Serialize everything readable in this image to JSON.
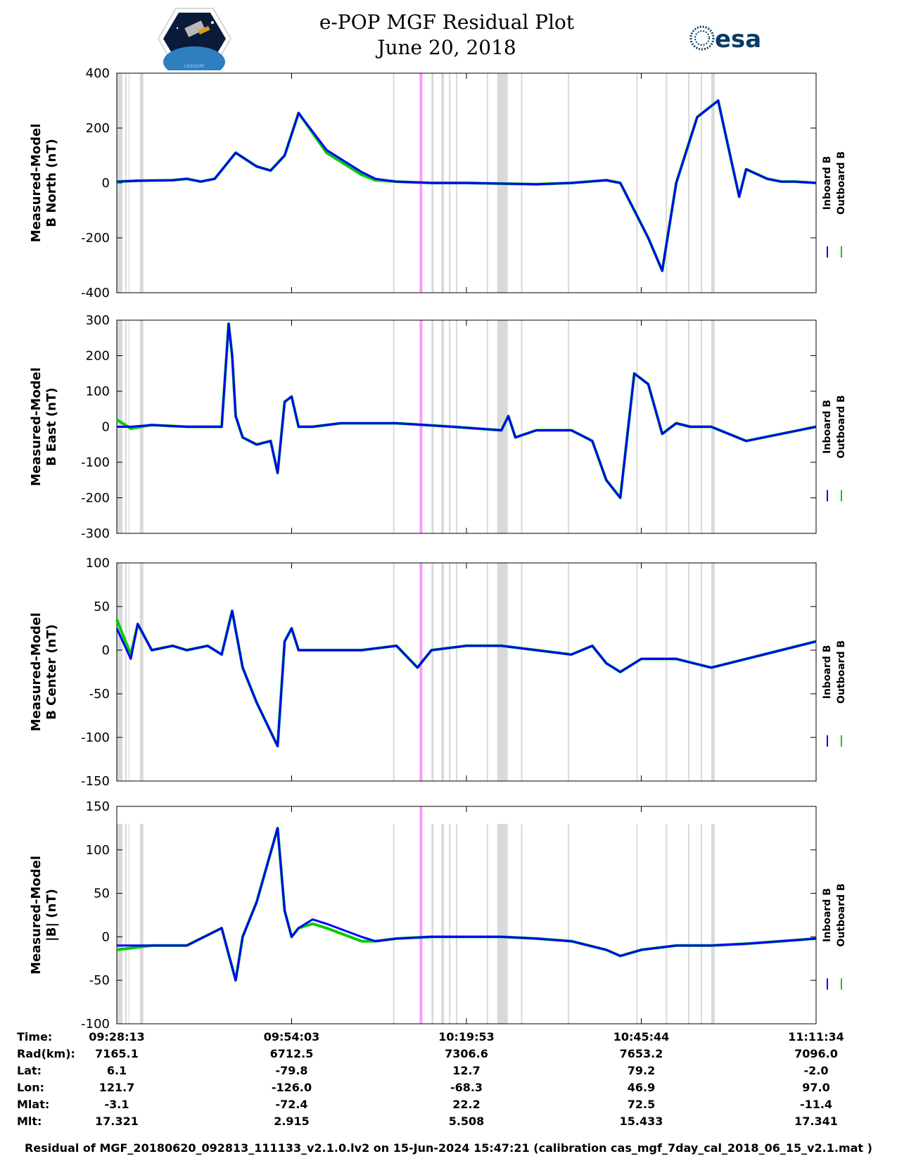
{
  "header": {
    "title": "e-POP MGF Residual Plot",
    "date": "June 20, 2018",
    "logo_left_caption": "CASSIOPE",
    "logo_right_text": "esa"
  },
  "colors": {
    "inboard": "#0000ff",
    "outboard": "#00cc00",
    "gap_band": "#d9d9d9",
    "marker": "#ff99ff"
  },
  "chart_data": [
    {
      "type": "line",
      "ylabel_line1": "Measured-Model",
      "ylabel_line2": "B North (nT)",
      "ylim": [
        -400,
        400
      ],
      "yticks": [
        400,
        200,
        0,
        -200,
        -400
      ],
      "x": [
        0,
        3,
        8,
        10,
        12,
        14,
        17,
        20,
        22,
        24,
        26,
        30,
        35,
        37,
        40,
        45,
        50,
        60,
        65,
        70,
        72,
        74,
        76,
        78,
        80,
        83,
        86,
        89,
        90,
        93,
        95,
        97,
        100
      ],
      "series": [
        {
          "name": "Inboard B",
          "values": [
            5,
            8,
            10,
            15,
            5,
            15,
            110,
            60,
            45,
            100,
            255,
            120,
            40,
            15,
            5,
            0,
            0,
            -5,
            0,
            10,
            0,
            -100,
            -200,
            -320,
            0,
            240,
            300,
            -50,
            50,
            15,
            5,
            5,
            0
          ]
        },
        {
          "name": "Outboard B",
          "values": [
            5,
            8,
            10,
            15,
            5,
            15,
            110,
            60,
            45,
            100,
            255,
            110,
            30,
            10,
            5,
            0,
            0,
            -5,
            0,
            10,
            0,
            -100,
            -200,
            -320,
            0,
            240,
            300,
            -50,
            50,
            15,
            5,
            5,
            0
          ]
        }
      ]
    },
    {
      "type": "line",
      "ylabel_line1": "Measured-Model",
      "ylabel_line2": "B East (nT)",
      "ylim": [
        -300,
        300
      ],
      "yticks": [
        300,
        200,
        100,
        0,
        -100,
        -200,
        -300
      ],
      "x": [
        0,
        2,
        5,
        10,
        15,
        16,
        16.5,
        17,
        18,
        20,
        22,
        23,
        24,
        25,
        26,
        28,
        32,
        40,
        48,
        55,
        56,
        57,
        60,
        65,
        68,
        70,
        72,
        74,
        76,
        78,
        80,
        82,
        85,
        90,
        100
      ],
      "series": [
        {
          "name": "Inboard B",
          "values": [
            0,
            0,
            5,
            0,
            0,
            290,
            200,
            30,
            -30,
            -50,
            -40,
            -130,
            70,
            85,
            0,
            0,
            10,
            10,
            0,
            -10,
            30,
            -30,
            -10,
            -10,
            -40,
            -150,
            -200,
            150,
            120,
            -20,
            10,
            0,
            0,
            -40,
            0
          ]
        },
        {
          "name": "Outboard B",
          "values": [
            20,
            -5,
            5,
            0,
            0,
            290,
            200,
            30,
            -30,
            -50,
            -40,
            -130,
            70,
            85,
            0,
            0,
            10,
            10,
            0,
            -10,
            30,
            -30,
            -10,
            -10,
            -40,
            -150,
            -200,
            150,
            120,
            -20,
            10,
            0,
            0,
            -40,
            0
          ]
        }
      ]
    },
    {
      "type": "line",
      "ylabel_line1": "Measured-Model",
      "ylabel_line2": "B Center (nT)",
      "ylim": [
        -150,
        100
      ],
      "yticks": [
        100,
        50,
        0,
        -50,
        -100,
        -150
      ],
      "x": [
        0,
        2,
        3,
        5,
        8,
        10,
        13,
        15,
        16.5,
        18,
        20,
        23,
        24,
        25,
        26,
        28,
        30,
        35,
        40,
        43,
        45,
        50,
        55,
        60,
        65,
        68,
        70,
        72,
        75,
        80,
        85,
        90,
        95,
        100
      ],
      "series": [
        {
          "name": "Inboard B",
          "values": [
            25,
            -10,
            30,
            0,
            5,
            0,
            5,
            -5,
            45,
            -20,
            -60,
            -110,
            10,
            25,
            0,
            0,
            0,
            0,
            5,
            -20,
            0,
            5,
            5,
            0,
            -5,
            5,
            -15,
            -25,
            -10,
            -10,
            -20,
            -10,
            0,
            10
          ]
        },
        {
          "name": "Outboard B",
          "values": [
            35,
            -5,
            30,
            0,
            5,
            0,
            5,
            -5,
            45,
            -20,
            -60,
            -110,
            10,
            25,
            0,
            0,
            0,
            0,
            5,
            -20,
            0,
            5,
            5,
            0,
            -5,
            5,
            -15,
            -25,
            -10,
            -10,
            -20,
            -10,
            0,
            10
          ]
        }
      ]
    },
    {
      "type": "line",
      "ylabel_line1": "Measured-Model",
      "ylabel_line2": "|B| (nT)",
      "ylim": [
        -100,
        150
      ],
      "yticks": [
        150,
        100,
        50,
        0,
        -50,
        -100
      ],
      "x": [
        0,
        5,
        10,
        15,
        16,
        17,
        18,
        20,
        23,
        24,
        25,
        26,
        28,
        30,
        35,
        37,
        40,
        45,
        50,
        55,
        60,
        65,
        70,
        72,
        75,
        80,
        85,
        90,
        95,
        100
      ],
      "series": [
        {
          "name": "Inboard B",
          "values": [
            -10,
            -10,
            -10,
            10,
            -20,
            -50,
            0,
            40,
            125,
            30,
            0,
            10,
            20,
            15,
            0,
            -5,
            -2,
            0,
            0,
            0,
            -2,
            -5,
            -15,
            -22,
            -15,
            -10,
            -10,
            -8,
            -5,
            -2
          ]
        },
        {
          "name": "Outboard B",
          "values": [
            -15,
            -10,
            -10,
            10,
            -20,
            -50,
            0,
            40,
            125,
            30,
            0,
            10,
            15,
            10,
            -5,
            -5,
            -2,
            0,
            0,
            0,
            -2,
            -5,
            -15,
            -22,
            -15,
            -10,
            -10,
            -8,
            -5,
            -2
          ]
        }
      ]
    }
  ],
  "gap_bands": [
    [
      0,
      0.8
    ],
    [
      1.2,
      1.4
    ],
    [
      1.7,
      1.8
    ],
    [
      3.3,
      3.8
    ],
    [
      39.5,
      39.7
    ],
    [
      45,
      45.3
    ],
    [
      46.4,
      46.8
    ],
    [
      47.5,
      47.7
    ],
    [
      48.5,
      48.7
    ],
    [
      52.9,
      53.1
    ],
    [
      54.4,
      55.9
    ],
    [
      57.8,
      58
    ],
    [
      64.5,
      64.7
    ],
    [
      74.3,
      74.5
    ],
    [
      78.5,
      78.7
    ],
    [
      81.7,
      81.9
    ],
    [
      83.5,
      83.7
    ],
    [
      85,
      85.5
    ]
  ],
  "marker_x": 43.5,
  "legend": {
    "inboard": "Inboard B",
    "outboard": "Outboard B"
  },
  "ephemeris": {
    "rows": [
      {
        "name": "Time:",
        "values": [
          "09:28:13",
          "09:54:03",
          "10:19:53",
          "10:45:44",
          "11:11:34"
        ]
      },
      {
        "name": "Rad(km):",
        "values": [
          "7165.1",
          "6712.5",
          "7306.6",
          "7653.2",
          "7096.0"
        ]
      },
      {
        "name": "Lat:",
        "values": [
          "6.1",
          "-79.8",
          "12.7",
          "79.2",
          "-2.0"
        ]
      },
      {
        "name": "Lon:",
        "values": [
          "121.7",
          "-126.0",
          "-68.3",
          "46.9",
          "97.0"
        ]
      },
      {
        "name": "Mlat:",
        "values": [
          "-3.1",
          "-72.4",
          "22.2",
          "72.5",
          "-11.4"
        ]
      },
      {
        "name": "Mlt:",
        "values": [
          "17.321",
          "2.915",
          "5.508",
          "15.433",
          "17.341"
        ]
      }
    ]
  },
  "footer": "Residual of MGF_20180620_092813_111133_v2.1.0.lv2 on 15-Jun-2024 15:47:21 (calibration cas_mgf_7day_cal_2018_06_15_v2.1.mat )"
}
